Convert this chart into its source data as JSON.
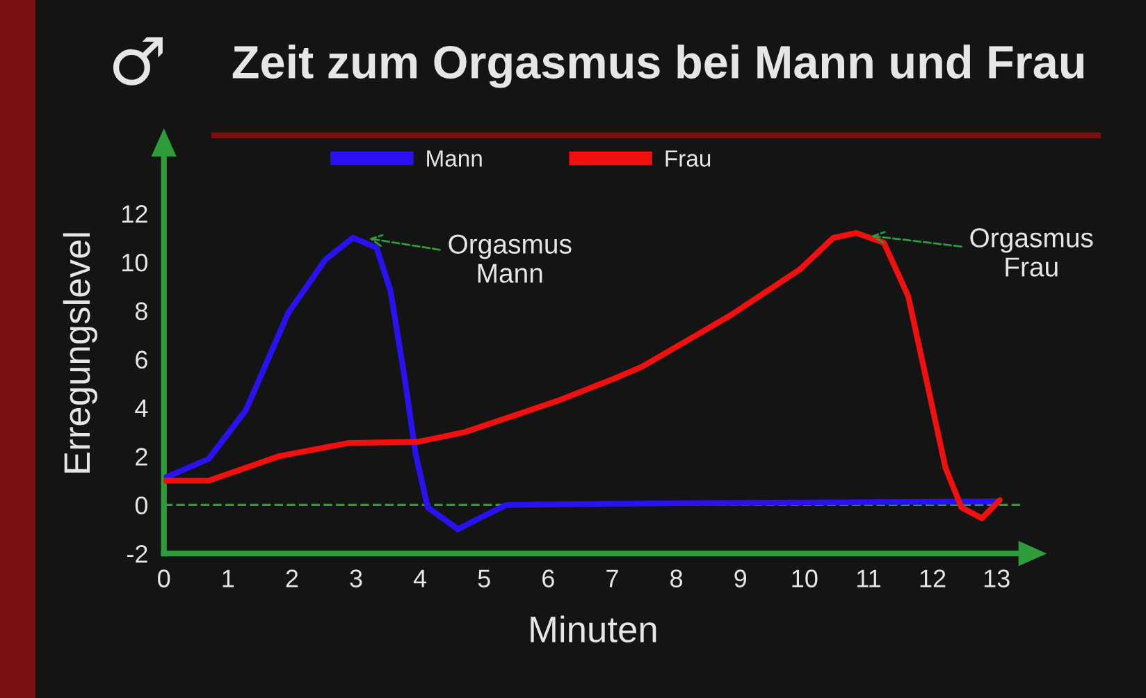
{
  "chart_data": {
    "type": "line",
    "title": "Zeit zum Orgasmus bei Mann und Frau",
    "xlabel": "Minuten",
    "ylabel": "Erregungslevel",
    "annotations": [
      "♂",
      {
        "text": "Orgasmus\nMann",
        "x": 3.14,
        "y": 11.0
      },
      {
        "text": "Orgasmus\nFrau",
        "x": 10.98,
        "y": 11.1
      }
    ],
    "series": [
      {
        "name": "Mann",
        "color": "#2a12f0",
        "x": [
          0,
          0.7,
          1.28,
          1.94,
          2.52,
          2.95,
          3.32,
          3.54,
          3.76,
          3.93,
          4.12,
          4.59,
          5.0,
          5.35,
          7.0,
          10.0,
          13.0
        ],
        "values": [
          1.1,
          1.9,
          3.9,
          7.9,
          10.1,
          11.0,
          10.6,
          8.8,
          5.2,
          2.1,
          -0.1,
          -1.0,
          -0.45,
          0.0,
          0.05,
          0.1,
          0.15
        ]
      },
      {
        "name": "Frau",
        "color": "#f01010",
        "x": [
          0,
          0.7,
          1.79,
          2.88,
          3.97,
          4.7,
          6.16,
          7.03,
          7.47,
          8.84,
          9.93,
          10.45,
          10.81,
          11.24,
          11.62,
          11.9,
          12.2,
          12.45,
          12.77,
          13.05
        ],
        "values": [
          1.0,
          1.0,
          2.0,
          2.55,
          2.6,
          3.0,
          4.3,
          5.2,
          5.7,
          7.8,
          9.7,
          11.0,
          11.2,
          10.8,
          8.6,
          5.2,
          1.55,
          -0.1,
          -0.55,
          0.2
        ]
      }
    ],
    "ref_lines": [
      {
        "axis": "y",
        "value": 0,
        "color": "#2e9c3a",
        "line_style": "dashed"
      }
    ],
    "xlim": [
      0,
      13.4
    ],
    "ylim": [
      -2,
      14.5
    ],
    "xticks": [
      0,
      1,
      2,
      3,
      4,
      5,
      6,
      7,
      8,
      9,
      10,
      11,
      12,
      13
    ],
    "yticks": [
      -2,
      0,
      2,
      4,
      6,
      8,
      10,
      12
    ],
    "grid": false,
    "legend": "top",
    "marker": "none",
    "line_style": "solid"
  }
}
